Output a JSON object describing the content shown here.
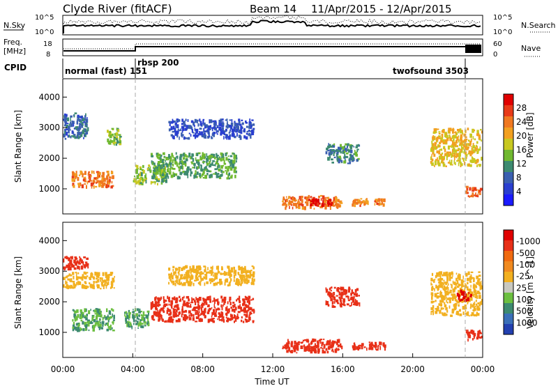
{
  "header": {
    "station": "Clyde River (fitACF)",
    "beam": "Beam 14",
    "date_range": "11/Apr/2015 - 12/Apr/2015"
  },
  "summary_panels": {
    "nsky": {
      "label": "N.Sky",
      "ticks": [
        "10^5",
        "10^0"
      ],
      "right_label": "N.Search",
      "right_ticks": [
        "10^5",
        "10^0"
      ]
    },
    "freq": {
      "label_top": "Freq.",
      "label_unit": "[MHz]",
      "ticks": [
        "18",
        "8"
      ],
      "right_label": "Nave",
      "right_ticks": [
        "60",
        "0"
      ]
    },
    "cpid": {
      "label": "CPID",
      "modes": [
        "normal (fast) 151",
        "rbsp 200",
        "twofsound 3503"
      ]
    }
  },
  "axes": {
    "x_label": "Time UT",
    "x_ticks": [
      "00:00",
      "04:00",
      "08:00",
      "12:00",
      "16:00",
      "20:00",
      "00:00"
    ],
    "y_label": "Slant Range [km]",
    "y_ticks": [
      "1000",
      "2000",
      "3000",
      "4000"
    ]
  },
  "colorbars": {
    "power": {
      "label": "Power [dB]",
      "ticks": [
        "4",
        "8",
        "12",
        "16",
        "20",
        "24",
        "28"
      ],
      "colors": [
        "#1a1aff",
        "#2a3fd0",
        "#3a5fb0",
        "#3d8a70",
        "#70b830",
        "#c8c820",
        "#f2a020",
        "#f07820",
        "#e83a18",
        "#e00000"
      ]
    },
    "velocity": {
      "label": "Velocity [m s^-1]",
      "ticks": [
        "1000",
        "500",
        "100",
        "25",
        "-25",
        "-100",
        "-500",
        "-1000"
      ],
      "colors": [
        "#2240b0",
        "#3a6fb8",
        "#3d8a70",
        "#6cbf40",
        "#c8c8c0",
        "#f2b020",
        "#f08a20",
        "#f06a10",
        "#e83018",
        "#e00000"
      ]
    }
  },
  "chart_data": [
    {
      "type": "heatmap",
      "title": "Power",
      "xlabel": "Time UT",
      "ylabel": "Slant Range [km]",
      "xlim": [
        "00:00",
        "24:00"
      ],
      "ylim": [
        180,
        4600
      ],
      "colorbar_label": "Power [dB]",
      "colorbar_range": [
        0,
        30
      ],
      "regions": [
        {
          "t_start": "00:00",
          "t_end": "01:30",
          "range_km": [
            2600,
            3500
          ],
          "value_db": 8
        },
        {
          "t_start": "00:30",
          "t_end": "03:00",
          "range_km": [
            1000,
            1600
          ],
          "value_db": 22
        },
        {
          "t_start": "02:30",
          "t_end": "03:30",
          "range_km": [
            2400,
            3000
          ],
          "value_db": 14
        },
        {
          "t_start": "04:00",
          "t_end": "06:00",
          "range_km": [
            1100,
            1800
          ],
          "value_db": 14
        },
        {
          "t_start": "05:00",
          "t_end": "10:00",
          "range_km": [
            1300,
            2200
          ],
          "value_db": 12
        },
        {
          "t_start": "06:00",
          "t_end": "11:00",
          "range_km": [
            2600,
            3300
          ],
          "value_db": 6
        },
        {
          "t_start": "12:30",
          "t_end": "16:00",
          "range_km": [
            300,
            800
          ],
          "value_db": 22
        },
        {
          "t_start": "14:00",
          "t_end": "15:30",
          "range_km": [
            400,
            700
          ],
          "value_db": 28
        },
        {
          "t_start": "15:00",
          "t_end": "17:00",
          "range_km": [
            1800,
            2500
          ],
          "value_db": 10
        },
        {
          "t_start": "16:30",
          "t_end": "18:30",
          "range_km": [
            400,
            700
          ],
          "value_db": 22
        },
        {
          "t_start": "21:00",
          "t_end": "24:00",
          "range_km": [
            1700,
            3000
          ],
          "value_db": 18
        },
        {
          "t_start": "23:00",
          "t_end": "24:00",
          "range_km": [
            700,
            1100
          ],
          "value_db": 24
        }
      ]
    },
    {
      "type": "heatmap",
      "title": "Velocity",
      "xlabel": "Time UT",
      "ylabel": "Slant Range [km]",
      "xlim": [
        "00:00",
        "24:00"
      ],
      "ylim": [
        180,
        4600
      ],
      "colorbar_label": "Velocity [m s^-1]",
      "colorbar_range": [
        -1000,
        1000
      ],
      "regions": [
        {
          "t_start": "00:00",
          "t_end": "01:30",
          "range_km": [
            3000,
            3500
          ],
          "value_ms": -300
        },
        {
          "t_start": "00:00",
          "t_end": "03:00",
          "range_km": [
            2400,
            3000
          ],
          "value_ms": 0
        },
        {
          "t_start": "00:30",
          "t_end": "03:00",
          "range_km": [
            1000,
            1800
          ],
          "value_ms": 250
        },
        {
          "t_start": "03:30",
          "t_end": "05:00",
          "range_km": [
            1100,
            1800
          ],
          "value_ms": 250
        },
        {
          "t_start": "05:00",
          "t_end": "11:00",
          "range_km": [
            1300,
            2200
          ],
          "value_ms": -400
        },
        {
          "t_start": "06:00",
          "t_end": "11:00",
          "range_km": [
            2500,
            3200
          ],
          "value_ms": 0
        },
        {
          "t_start": "12:30",
          "t_end": "16:00",
          "range_km": [
            300,
            800
          ],
          "value_ms": -300
        },
        {
          "t_start": "15:00",
          "t_end": "17:00",
          "range_km": [
            1800,
            2500
          ],
          "value_ms": -300
        },
        {
          "t_start": "16:30",
          "t_end": "18:30",
          "range_km": [
            400,
            700
          ],
          "value_ms": -300
        },
        {
          "t_start": "21:00",
          "t_end": "24:00",
          "range_km": [
            1500,
            3000
          ],
          "value_ms": 0
        },
        {
          "t_start": "22:30",
          "t_end": "23:30",
          "range_km": [
            2000,
            2400
          ],
          "value_ms": -900
        },
        {
          "t_start": "23:00",
          "t_end": "24:00",
          "range_km": [
            700,
            1100
          ],
          "value_ms": -300
        }
      ]
    }
  ]
}
